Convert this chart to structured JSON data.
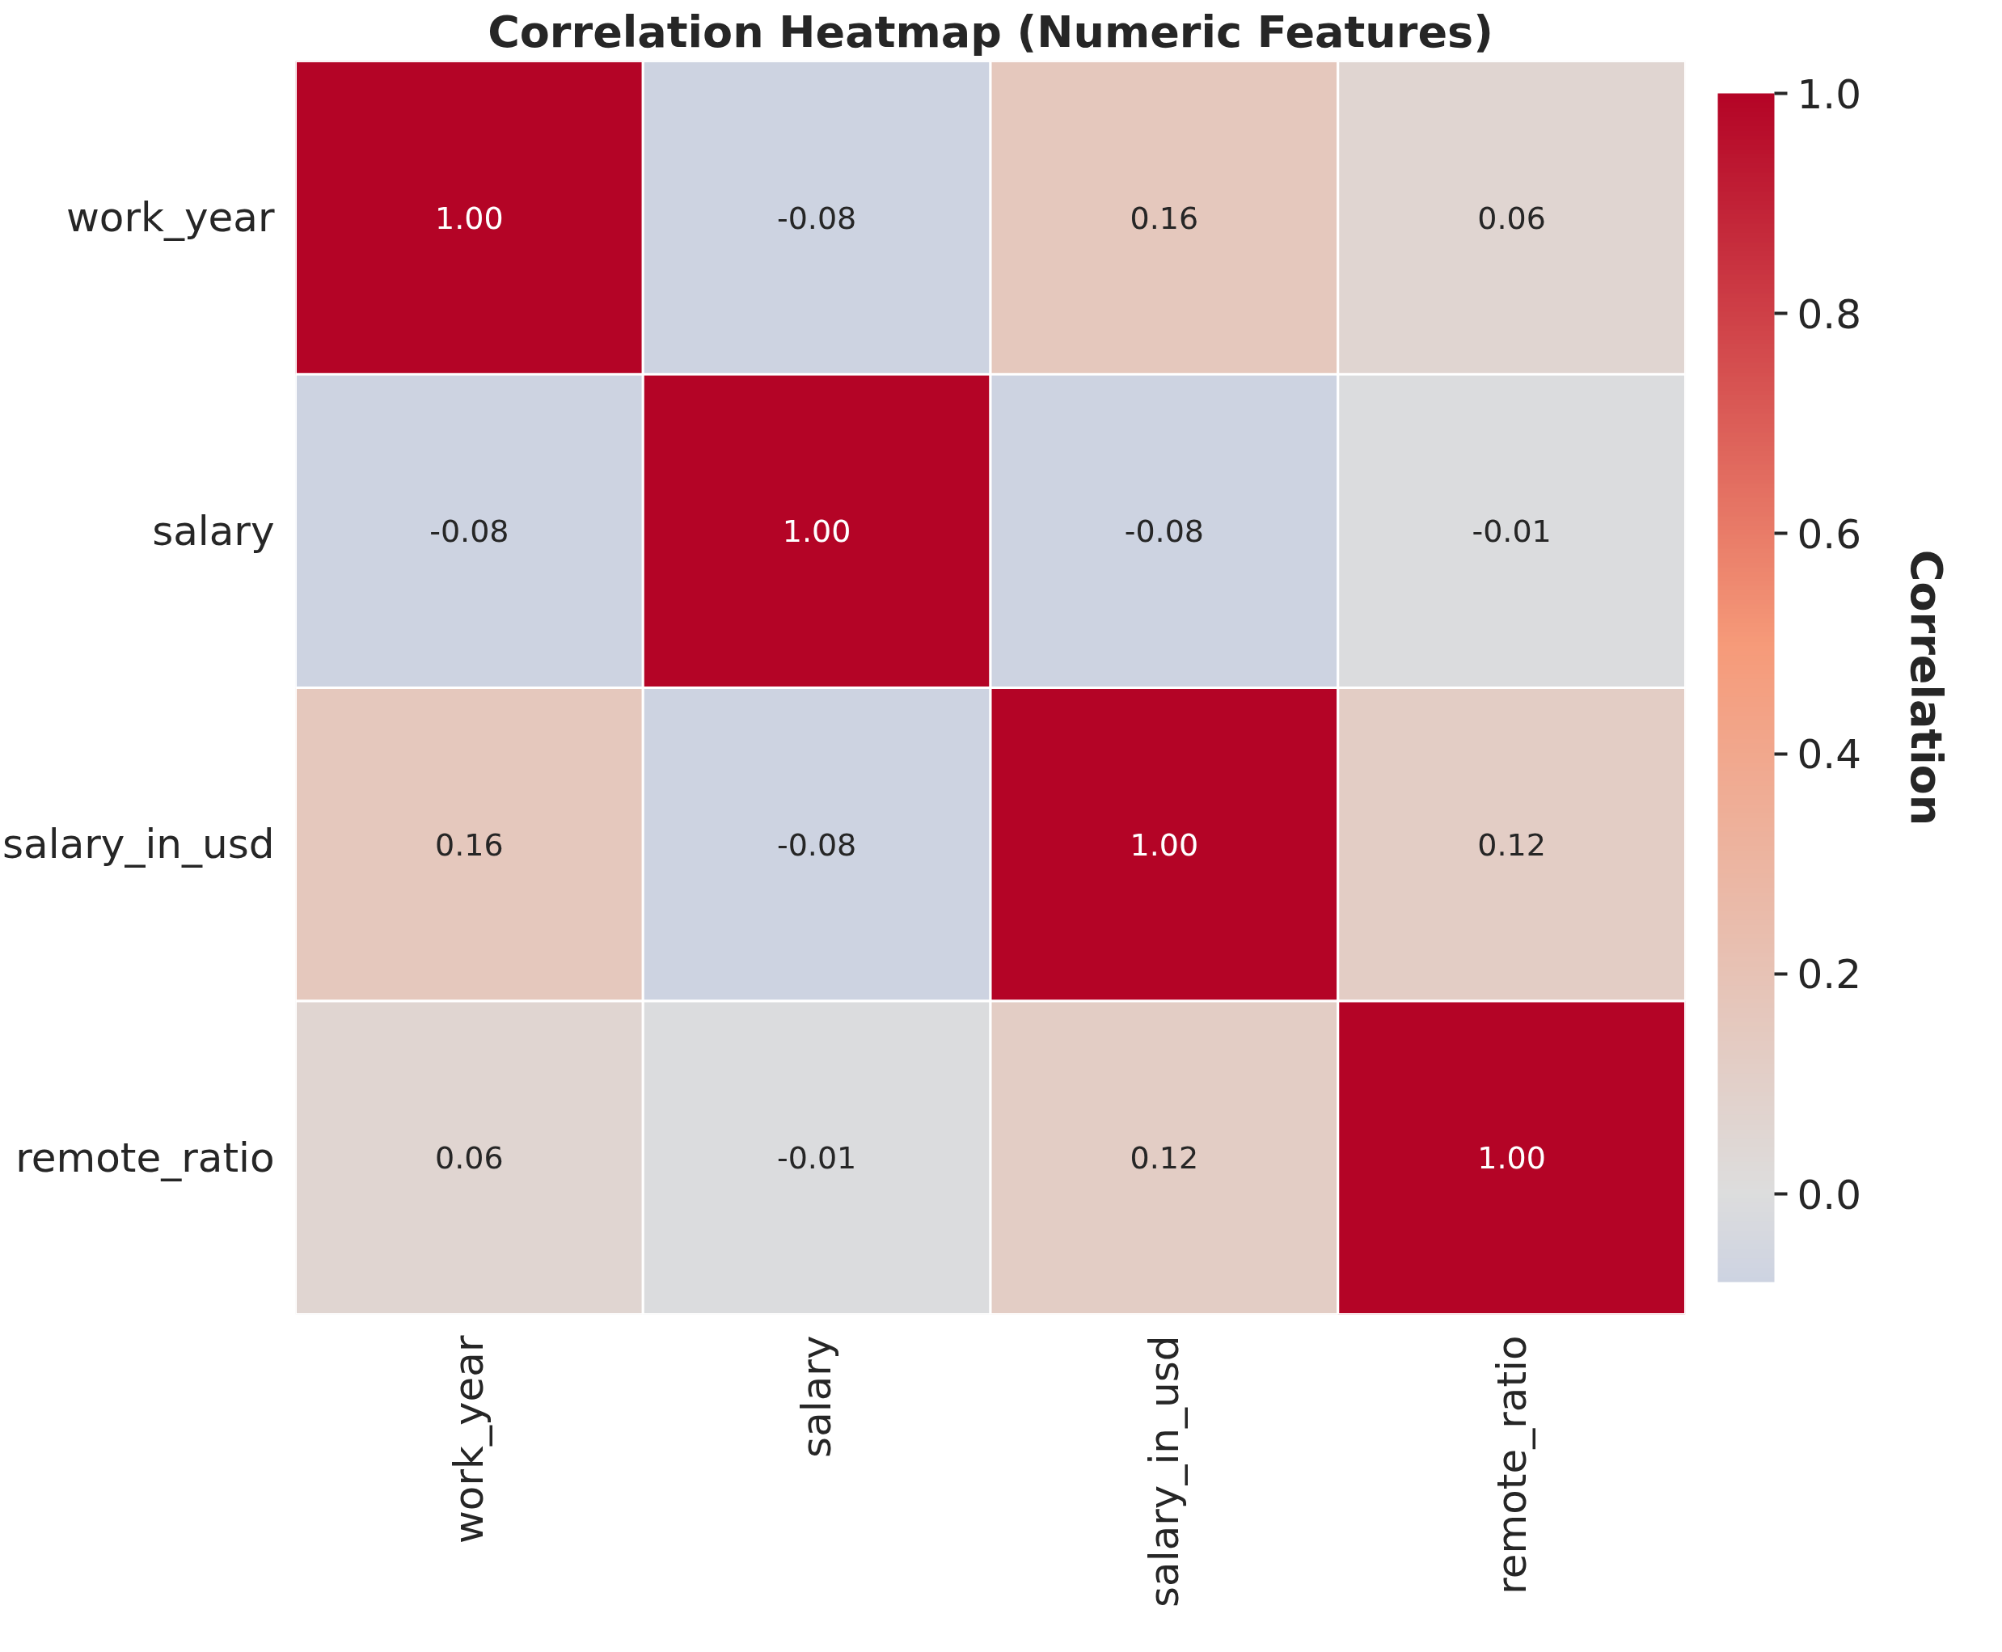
{
  "chart_data": {
    "type": "heatmap",
    "title": "Correlation Heatmap (Numeric Features)",
    "categories": [
      "work_year",
      "salary",
      "salary_in_usd",
      "remote_ratio"
    ],
    "y_categories": [
      "work_year",
      "salary",
      "salary_in_usd",
      "remote_ratio"
    ],
    "cells": [
      [
        1.0,
        -0.08,
        0.16,
        0.06
      ],
      [
        -0.08,
        1.0,
        -0.08,
        -0.01
      ],
      [
        0.16,
        -0.08,
        1.0,
        0.12
      ],
      [
        0.06,
        -0.01,
        0.12,
        1.0
      ]
    ],
    "cell_labels": [
      [
        "1.00",
        "-0.08",
        "0.16",
        "0.06"
      ],
      [
        "-0.08",
        "1.00",
        "-0.08",
        "-0.01"
      ],
      [
        "0.16",
        "-0.08",
        "1.00",
        "0.12"
      ],
      [
        "0.06",
        "-0.01",
        "0.12",
        "1.00"
      ]
    ],
    "clabel": "Correlation",
    "clim": [
      -0.08,
      1.0
    ],
    "cticks": [
      {
        "value": 0.0,
        "label": "0.0"
      },
      {
        "value": 0.2,
        "label": "0.2"
      },
      {
        "value": 0.4,
        "label": "0.4"
      },
      {
        "value": 0.6,
        "label": "0.6"
      },
      {
        "value": 0.8,
        "label": "0.8"
      },
      {
        "value": 1.0,
        "label": "1.0"
      }
    ]
  }
}
